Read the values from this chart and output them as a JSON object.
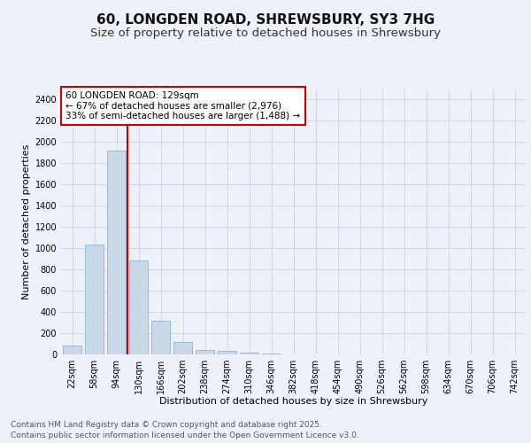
{
  "title_line1": "60, LONGDEN ROAD, SHREWSBURY, SY3 7HG",
  "title_line2": "Size of property relative to detached houses in Shrewsbury",
  "xlabel": "Distribution of detached houses by size in Shrewsbury",
  "ylabel": "Number of detached properties",
  "categories": [
    "22sqm",
    "58sqm",
    "94sqm",
    "130sqm",
    "166sqm",
    "202sqm",
    "238sqm",
    "274sqm",
    "310sqm",
    "346sqm",
    "382sqm",
    "418sqm",
    "454sqm",
    "490sqm",
    "526sqm",
    "562sqm",
    "598sqm",
    "634sqm",
    "670sqm",
    "706sqm",
    "742sqm"
  ],
  "values": [
    85,
    1030,
    1920,
    880,
    315,
    115,
    45,
    35,
    20,
    5,
    0,
    0,
    0,
    0,
    0,
    0,
    0,
    0,
    0,
    0,
    0
  ],
  "bar_color": "#c9d9e8",
  "bar_edgecolor": "#7aaac8",
  "vline_color": "#cc0000",
  "annotation_text": "60 LONGDEN ROAD: 129sqm\n← 67% of detached houses are smaller (2,976)\n33% of semi-detached houses are larger (1,488) →",
  "annotation_box_color": "#ffffff",
  "annotation_box_edgecolor": "#cc0000",
  "ylim": [
    0,
    2500
  ],
  "yticks": [
    0,
    200,
    400,
    600,
    800,
    1000,
    1200,
    1400,
    1600,
    1800,
    2000,
    2200,
    2400
  ],
  "grid_color": "#d0d8e8",
  "background_color": "#eef2f8",
  "footer_line1": "Contains HM Land Registry data © Crown copyright and database right 2025.",
  "footer_line2": "Contains public sector information licensed under the Open Government Licence v3.0.",
  "title_fontsize": 11,
  "subtitle_fontsize": 9.5,
  "axis_label_fontsize": 8,
  "tick_fontsize": 7,
  "annotation_fontsize": 7.5,
  "footer_fontsize": 6.5
}
